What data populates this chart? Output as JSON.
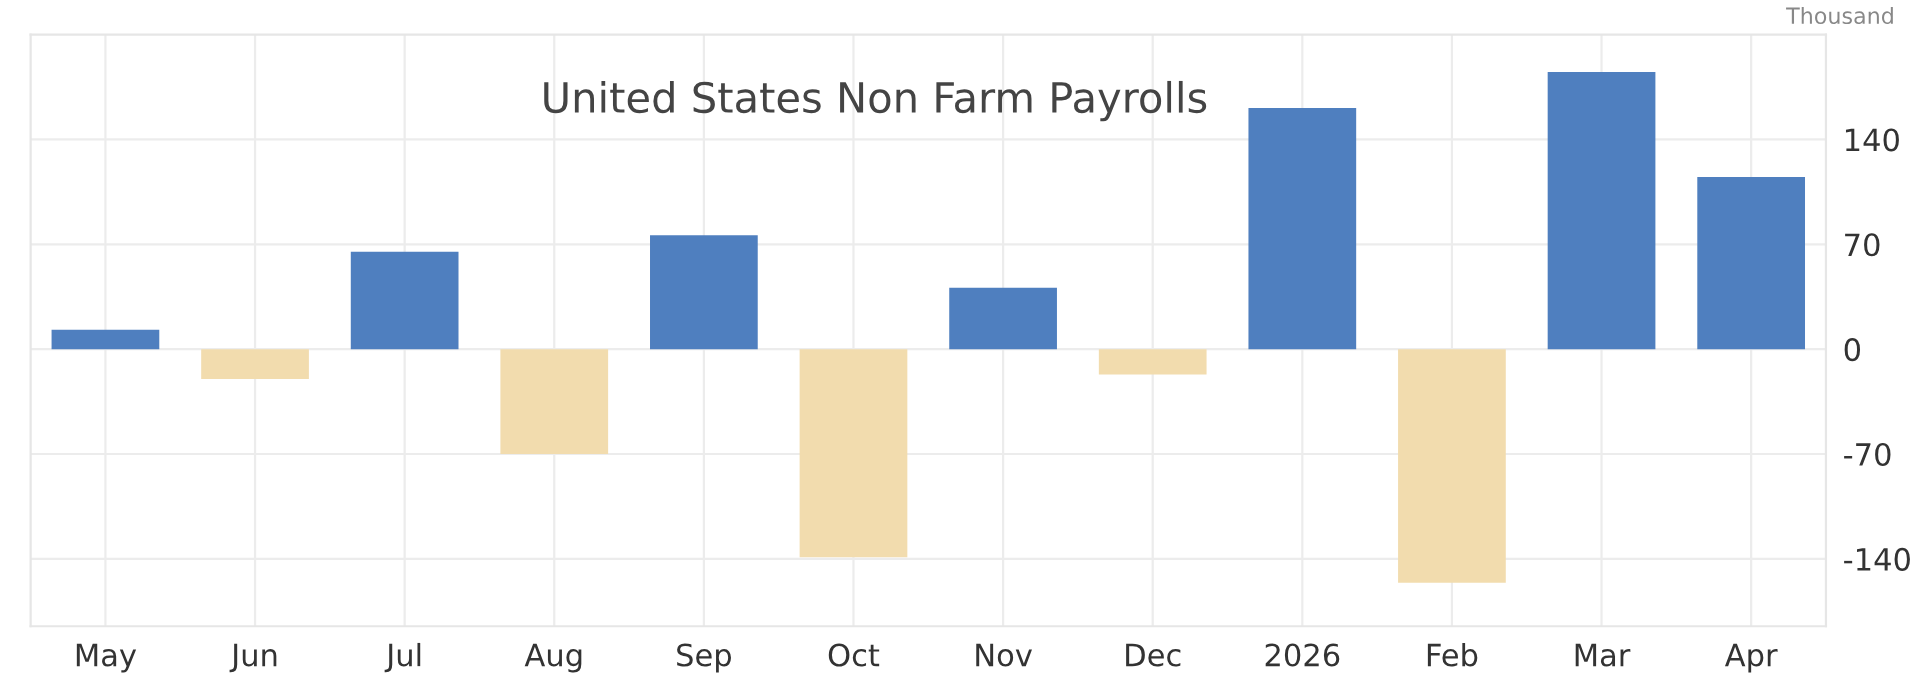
{
  "chart_data": {
    "type": "bar",
    "title": "United States Non Farm Payrolls",
    "annotations": [
      "Thousand"
    ],
    "categories": [
      "May",
      "Jun",
      "Jul",
      "Aug",
      "Sep",
      "Oct",
      "Nov",
      "Dec",
      "2026",
      "Feb",
      "Mar",
      "Apr"
    ],
    "values": [
      13,
      -20,
      65,
      -70,
      76,
      -139,
      41,
      -17,
      161,
      -156,
      185,
      115
    ],
    "colors": [
      "#4f7fbf",
      "#f2dcae",
      "#4f7fbf",
      "#f2dcae",
      "#4f7fbf",
      "#f2dcae",
      "#4f7fbf",
      "#f2dcae",
      "#4f7fbf",
      "#f2dcae",
      "#4f7fbf",
      "#4f7fbf"
    ],
    "ylim": [
      -185,
      210
    ],
    "yticks": [
      -140,
      -70,
      0,
      70,
      140
    ],
    "grid": true
  }
}
